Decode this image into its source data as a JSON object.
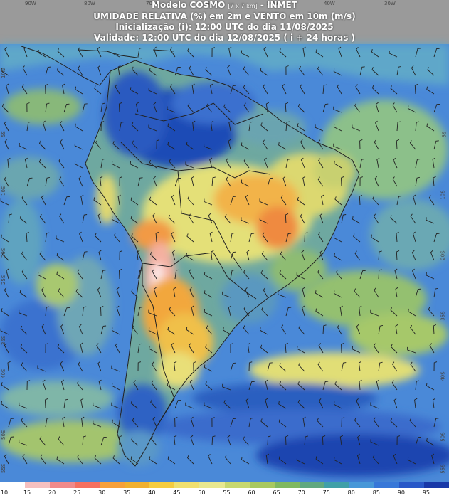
{
  "header": {
    "model_line_name": "Modelo COSMO",
    "model_line_res": "[7 x 7 km]",
    "model_line_org": "- INMET",
    "product": "UMIDADE RELATIVA (%) em 2m e VENTO em 10m (m/s)",
    "init": "Inicialização (i): 12:00 UTC do dia 11/08/2025",
    "valid": "Validade: 12:00 UTC do dia 12/08/2025 ( i + 24 horas )"
  },
  "lon_labels": [
    "90W",
    "80W",
    "70W",
    "60W",
    "50W",
    "40W",
    "30W"
  ],
  "lat_labels_left": [
    "10N",
    "5S",
    "10S",
    "20S",
    "25S",
    "35S",
    "40S",
    "50S",
    "55S"
  ],
  "lat_labels_right": [
    "5S",
    "10S",
    "20S",
    "35S",
    "40S",
    "50S",
    "55S"
  ],
  "legend": {
    "labels": [
      "10",
      "15",
      "20",
      "25",
      "30",
      "35",
      "40",
      "45",
      "50",
      "55",
      "60",
      "65",
      "70",
      "75",
      "80",
      "85",
      "90",
      "95"
    ],
    "colors": [
      "#ffffff",
      "#f5c0c0",
      "#f08a8a",
      "#f57060",
      "#f6a03a",
      "#f0b030",
      "#f5cc40",
      "#f0e070",
      "#e8e890",
      "#c8d870",
      "#a8c860",
      "#80b860",
      "#60a880",
      "#40a0a8",
      "#4898d8",
      "#3878d8",
      "#2858c8",
      "#1838a8"
    ]
  },
  "colors": {
    "ocean_blue": "#3d7fd6",
    "deep_blue": "#1f4fb8",
    "header_grey": "#9a9a9a",
    "yellow": "#e9e37b",
    "orange": "#f2a43a"
  }
}
